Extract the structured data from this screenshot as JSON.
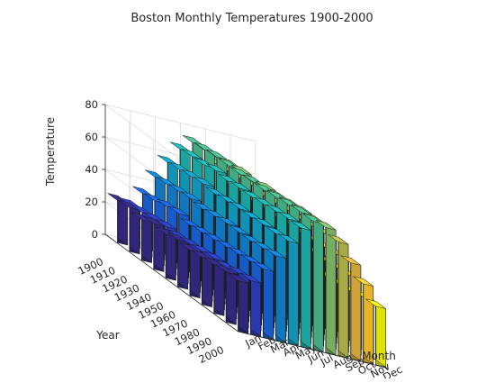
{
  "chart_data": {
    "type": "bar3",
    "title": "Boston Monthly Temperatures 1900-2000",
    "xlabel": "Month",
    "ylabel": "Year",
    "zlabel": "Temperature",
    "months": [
      "Jan",
      "Feb",
      "Mar",
      "Apr",
      "May",
      "Jun",
      "Jul",
      "Aug",
      "Sep",
      "Oct",
      "Nov",
      "Dec"
    ],
    "years": [
      "1900",
      "1910",
      "1920",
      "1930",
      "1940",
      "1950",
      "1960",
      "1970",
      "1980",
      "1990",
      "2000"
    ],
    "zticks": [
      "0",
      "20",
      "40",
      "60",
      "80"
    ],
    "zlim": [
      0,
      80
    ],
    "series": [
      {
        "year": "1900",
        "values": [
          26,
          25,
          34,
          46,
          57,
          67,
          73,
          70,
          63,
          52,
          42,
          30
        ]
      },
      {
        "year": "1910",
        "values": [
          27,
          26,
          35,
          47,
          58,
          68,
          74,
          71,
          64,
          53,
          43,
          31
        ]
      },
      {
        "year": "1920",
        "values": [
          25,
          27,
          37,
          48,
          59,
          68,
          75,
          72,
          65,
          53,
          42,
          30
        ]
      },
      {
        "year": "1930",
        "values": [
          28,
          28,
          38,
          49,
          60,
          70,
          75,
          73,
          66,
          54,
          44,
          32
        ]
      },
      {
        "year": "1940",
        "values": [
          27,
          27,
          36,
          48,
          59,
          69,
          75,
          72,
          65,
          54,
          43,
          31
        ]
      },
      {
        "year": "1950",
        "values": [
          29,
          28,
          37,
          49,
          60,
          70,
          76,
          74,
          66,
          55,
          44,
          33
        ]
      },
      {
        "year": "1960",
        "values": [
          28,
          29,
          38,
          50,
          61,
          70,
          76,
          74,
          67,
          55,
          45,
          32
        ]
      },
      {
        "year": "1970",
        "values": [
          29,
          30,
          39,
          50,
          61,
          71,
          77,
          75,
          67,
          56,
          45,
          33
        ]
      },
      {
        "year": "1980",
        "values": [
          30,
          30,
          40,
          50,
          62,
          72,
          78,
          76,
          68,
          57,
          46,
          34
        ]
      },
      {
        "year": "1990",
        "values": [
          31,
          32,
          41,
          51,
          62,
          73,
          79,
          76,
          69,
          58,
          47,
          36
        ]
      },
      {
        "year": "2000",
        "values": [
          31,
          33,
          42,
          52,
          63,
          73,
          79,
          77,
          70,
          59,
          48,
          36
        ]
      }
    ],
    "colormap": "parula",
    "colors_by_month": [
      "#352a87",
      "#2c3ec2",
      "#1a65dd",
      "#1284d4",
      "#14a2c8",
      "#1eb5b0",
      "#4abc8f",
      "#84c06c",
      "#b8bc4d",
      "#e2b53f",
      "#fdc82f",
      "#f9fb0e"
    ],
    "grid": true
  }
}
